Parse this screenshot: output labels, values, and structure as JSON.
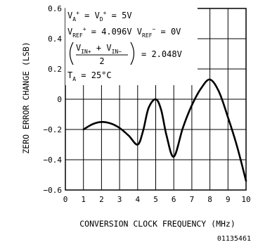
{
  "chart_data": {
    "type": "line",
    "xlabel": "CONVERSION CLOCK FREQUENCY (MHz)",
    "ylabel": "ZERO ERROR CHANGE (LSB)",
    "xlim": [
      0,
      10
    ],
    "ylim": [
      -0.6,
      0.6
    ],
    "x_ticks": [
      0,
      1,
      2,
      3,
      4,
      5,
      6,
      7,
      8,
      9,
      10
    ],
    "y_ticks": [
      0.6,
      0.4,
      0.2,
      0,
      -0.2,
      -0.4,
      -0.6
    ],
    "y_tick_labels": [
      "0.6",
      "0.4",
      "0.2",
      "0",
      "−0.2",
      "−0.4",
      "−0.6"
    ],
    "grid": true,
    "series": [
      {
        "x": [
          1.0,
          1.5,
          2.0,
          2.5,
          3.0,
          3.5,
          4.0,
          4.3,
          4.6,
          5.0,
          5.3,
          5.6,
          6.0,
          6.5,
          7.0,
          7.5,
          8.0,
          8.5,
          9.0,
          9.5,
          10.0
        ],
        "y": [
          -0.2,
          -0.165,
          -0.15,
          -0.16,
          -0.19,
          -0.24,
          -0.3,
          -0.21,
          -0.06,
          0.0,
          -0.07,
          -0.24,
          -0.38,
          -0.19,
          -0.04,
          0.07,
          0.13,
          0.05,
          -0.12,
          -0.31,
          -0.54
        ]
      }
    ],
    "annotations": {
      "line1": {
        "a": "V",
        "b": "A",
        "c": "+",
        "d": " = V",
        "e": "D",
        "f": "+",
        "g": " = 5V"
      },
      "line2": {
        "a": "V",
        "b": "REF",
        "c": "+",
        "d": " = 4.096V  V",
        "e": "REF",
        "f": "−",
        "g": " = 0V"
      },
      "line3": {
        "n1": "V",
        "n2": "IN+",
        "n3": " + V",
        "n4": "IN−",
        "den": "2",
        "eq": "= 2.048V"
      },
      "line4": {
        "a": "T",
        "b": "A",
        "c": " = 25°C"
      }
    },
    "figure_id": "01135461"
  }
}
